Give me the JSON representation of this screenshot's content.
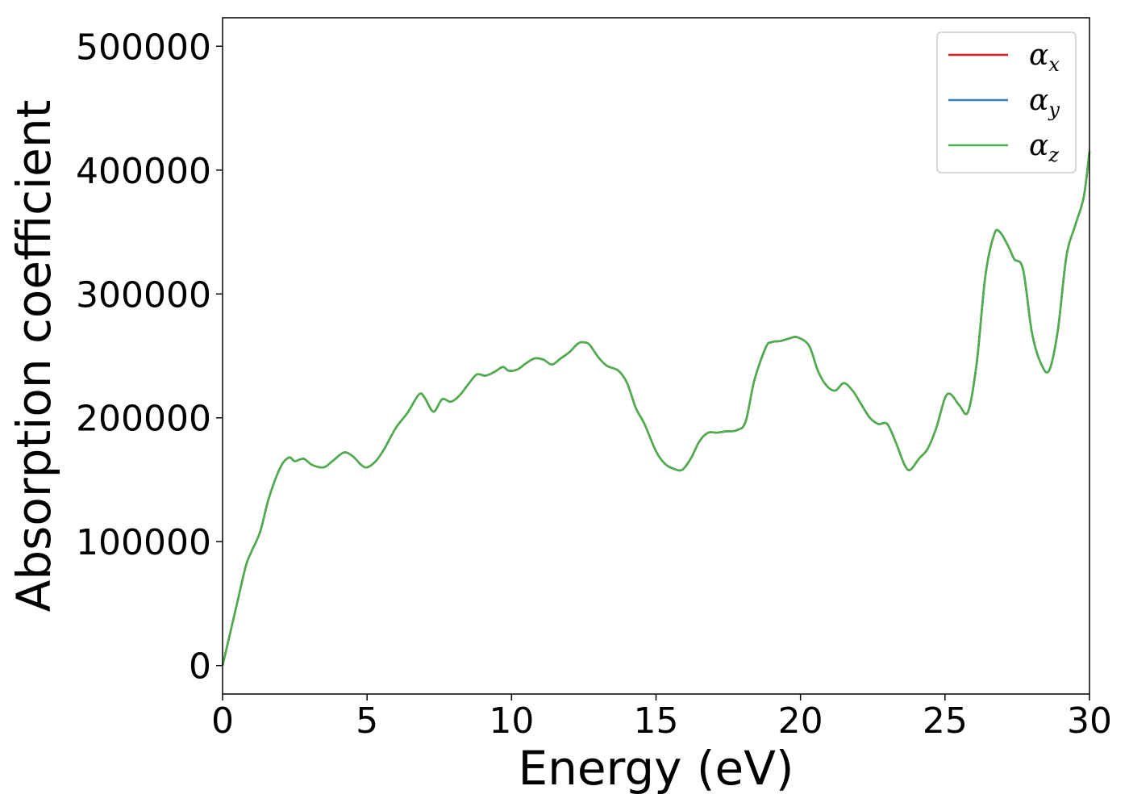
{
  "chart_data": {
    "type": "line",
    "xlabel": "Energy (eV)",
    "ylabel": "Absorption coefficient",
    "xlim": [
      0,
      30
    ],
    "ylim": [
      -23000,
      523000
    ],
    "xticks": [
      "0",
      "5",
      "10",
      "15",
      "20",
      "25",
      "30"
    ],
    "yticks": [
      "0",
      "100000",
      "200000",
      "300000",
      "400000",
      "500000"
    ],
    "grid": false,
    "legend_position": "top-right",
    "colors": {
      "alpha_x": "#e41a1c",
      "alpha_y": "#377eb8",
      "alpha_z": "#4daf4a"
    },
    "series": [
      {
        "name": "α_x",
        "symbol": "α",
        "subscript": "x",
        "color": "#e41a1c"
      },
      {
        "name": "α_y",
        "symbol": "α",
        "subscript": "y",
        "color": "#377eb8"
      },
      {
        "name": "α_z",
        "symbol": "α",
        "subscript": "z",
        "color": "#4daf4a"
      }
    ],
    "x": [
      0,
      0.2,
      0.5,
      0.8,
      1.0,
      1.3,
      1.6,
      2.0,
      2.3,
      2.5,
      2.8,
      3.1,
      3.5,
      3.8,
      4.2,
      4.5,
      4.8,
      5.0,
      5.3,
      5.6,
      6.0,
      6.4,
      6.8,
      7.0,
      7.3,
      7.6,
      7.9,
      8.2,
      8.5,
      8.8,
      9.1,
      9.4,
      9.7,
      9.9,
      10.2,
      10.5,
      10.8,
      11.1,
      11.4,
      11.7,
      12.0,
      12.3,
      12.5,
      12.7,
      13.0,
      13.3,
      13.7,
      14.0,
      14.3,
      14.6,
      15.0,
      15.3,
      15.6,
      15.9,
      16.2,
      16.5,
      16.8,
      17.1,
      17.4,
      17.8,
      18.1,
      18.4,
      18.8,
      19.0,
      19.3,
      19.6,
      19.9,
      20.3,
      20.6,
      20.9,
      21.2,
      21.5,
      21.8,
      22.1,
      22.4,
      22.7,
      23.0,
      23.3,
      23.6,
      23.8,
      24.1,
      24.4,
      24.7,
      25.0,
      25.2,
      25.5,
      25.8,
      26.1,
      26.4,
      26.7,
      26.9,
      27.2,
      27.4,
      27.7,
      28.0,
      28.3,
      28.6,
      28.9,
      29.2,
      29.5,
      29.8,
      30.0
    ],
    "y": [
      0,
      20000,
      50000,
      80000,
      92000,
      108000,
      135000,
      160000,
      168000,
      165000,
      167000,
      162000,
      160000,
      165000,
      172000,
      169000,
      162000,
      160000,
      165000,
      175000,
      192000,
      204000,
      219000,
      216000,
      205000,
      215000,
      213000,
      218000,
      227000,
      235000,
      234000,
      237000,
      241000,
      238000,
      239000,
      244000,
      248000,
      247000,
      243000,
      248000,
      253000,
      260000,
      261000,
      259000,
      249000,
      242000,
      238000,
      228000,
      208000,
      195000,
      173000,
      163000,
      159000,
      158000,
      167000,
      181000,
      188000,
      188000,
      189000,
      190000,
      197000,
      230000,
      257000,
      261000,
      262000,
      264000,
      265000,
      258000,
      238000,
      226000,
      222000,
      228000,
      222000,
      211000,
      200000,
      195000,
      195000,
      180000,
      162000,
      158000,
      167000,
      175000,
      192000,
      216000,
      219000,
      210000,
      205000,
      245000,
      315000,
      348000,
      350000,
      338000,
      328000,
      320000,
      270000,
      245000,
      238000,
      270000,
      330000,
      355000,
      378000,
      415000
    ]
  }
}
